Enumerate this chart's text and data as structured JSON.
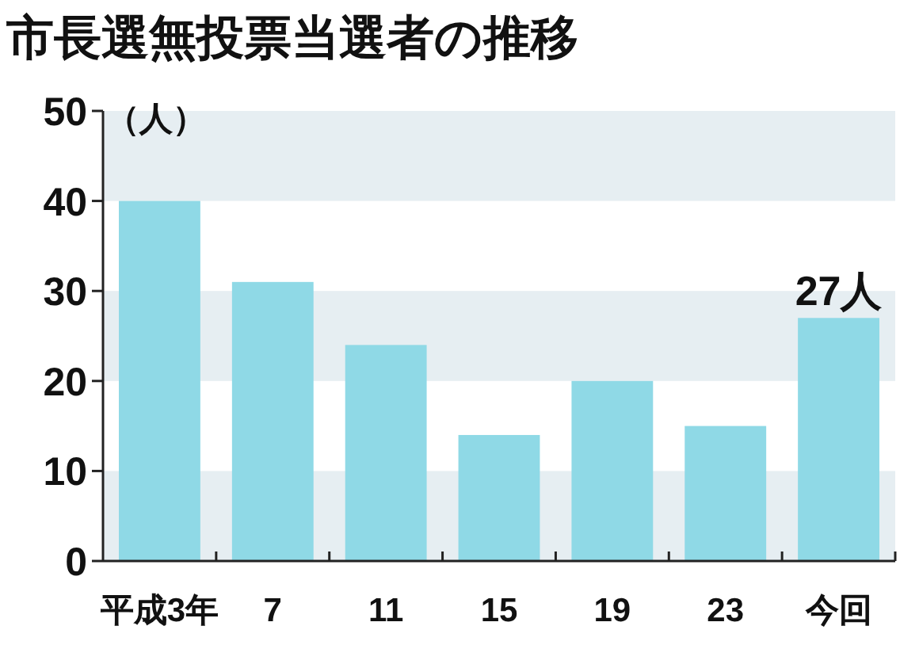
{
  "chart_data": {
    "type": "bar",
    "title": "市長選無投票当選者の推移",
    "ylabel": "（人）",
    "categories": [
      "平成3年",
      "7",
      "11",
      "15",
      "19",
      "23",
      "今回"
    ],
    "values": [
      40,
      31,
      24,
      14,
      20,
      15,
      27
    ],
    "value_labels": [
      null,
      null,
      null,
      null,
      null,
      null,
      "27人"
    ],
    "color": "#8fd9e6",
    "ylim": [
      0,
      50
    ],
    "yticks": [
      0,
      10,
      20,
      30,
      40,
      50
    ],
    "bands": [
      {
        "axis": "y",
        "from": 0,
        "to": 10,
        "color": "#e6eef2"
      },
      {
        "axis": "y",
        "from": 20,
        "to": 30,
        "color": "#e6eef2"
      },
      {
        "axis": "y",
        "from": 40,
        "to": 50,
        "color": "#e6eef2"
      }
    ]
  }
}
